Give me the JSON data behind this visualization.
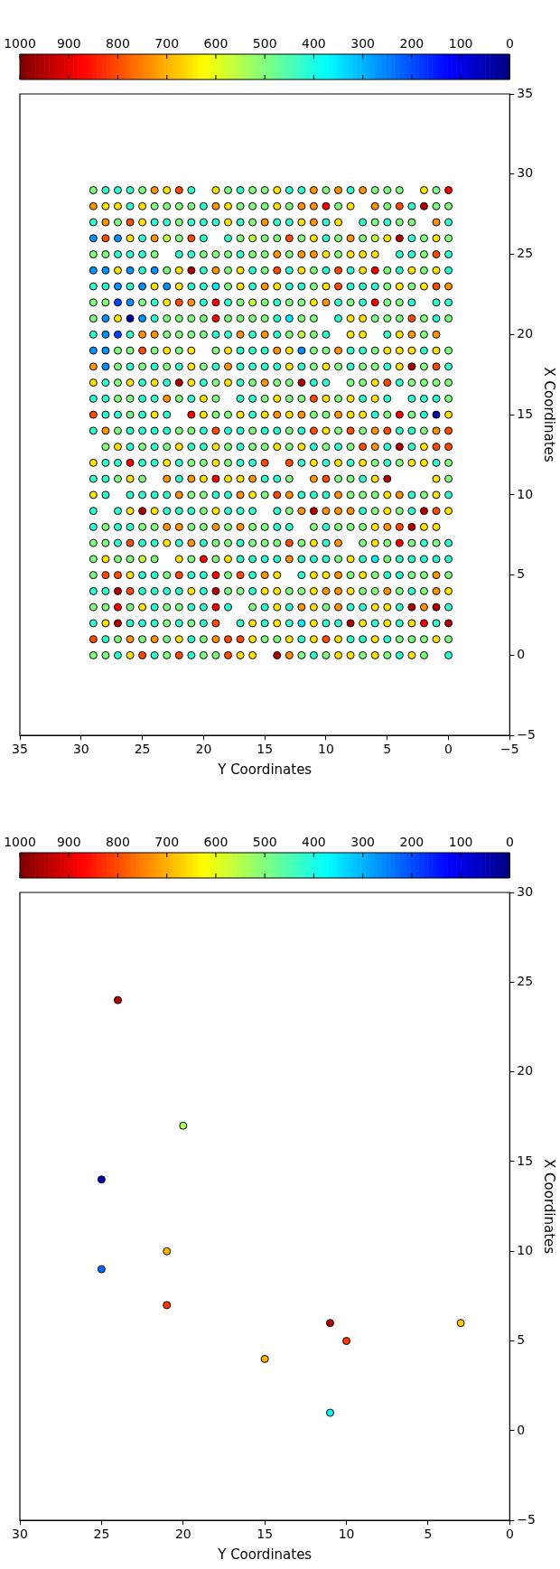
{
  "chart_data": [
    {
      "type": "scatter",
      "xlabel": "Y Coordinates",
      "ylabel": "X Coordinates",
      "marker": "circle",
      "xlim": [
        30,
        0
      ],
      "ylim": [
        -5,
        30
      ],
      "xticks": [
        30,
        25,
        20,
        15,
        10,
        5,
        0
      ],
      "yticks": [
        {
          "value": -5,
          "label": "−5"
        },
        0,
        5,
        10,
        15,
        20,
        25,
        30
      ],
      "clim": [
        0,
        1000
      ],
      "cticks": [
        0,
        100,
        200,
        300,
        400,
        500,
        600,
        700,
        800,
        900,
        1000
      ],
      "x": [
        11,
        15,
        10,
        11,
        3,
        21,
        25,
        21,
        25,
        20,
        24
      ],
      "values": [
        1,
        4,
        5,
        6,
        6,
        7,
        9,
        10,
        14,
        17,
        24
      ],
      "cvalues": [
        370,
        700,
        820,
        950,
        680,
        820,
        230,
        700,
        50,
        540,
        950
      ]
    },
    {
      "type": "scatter",
      "xlabel": "Y Coordinates",
      "ylabel": "X Coordinates",
      "marker": "circle",
      "xlim": [
        35,
        -5
      ],
      "ylim": [
        -5,
        35
      ],
      "xticks": [
        35,
        30,
        25,
        20,
        15,
        10,
        5,
        0,
        {
          "value": -5,
          "label": "−5"
        }
      ],
      "yticks": [
        {
          "value": -5,
          "label": "−5"
        },
        0,
        5,
        10,
        15,
        20,
        25,
        30,
        35
      ],
      "clim": [
        0,
        1000
      ],
      "cticks": [
        0,
        100,
        200,
        300,
        400,
        500,
        600,
        700,
        800,
        900,
        1000
      ],
      "x": [
        29,
        28,
        27,
        26,
        25,
        24,
        23,
        22,
        21,
        19,
        18,
        17,
        16,
        15,
        14,
        13,
        12,
        11,
        10,
        9,
        8,
        7,
        6,
        5,
        4,
        2,
        1,
        0,
        29,
        28,
        27,
        26,
        25,
        24,
        23,
        22,
        21,
        20,
        19,
        18,
        17,
        16,
        15,
        14,
        13,
        12,
        11,
        10,
        9,
        8,
        6,
        5,
        4,
        3,
        2,
        1,
        0,
        29,
        28,
        27,
        26,
        25,
        24,
        23,
        22,
        21,
        20,
        19,
        18,
        17,
        16,
        15,
        14,
        13,
        12,
        11,
        10,
        9,
        7,
        6,
        5,
        4,
        3,
        1,
        0,
        29,
        28,
        27,
        26,
        25,
        24,
        23,
        22,
        21,
        20,
        18,
        17,
        16,
        15,
        14,
        13,
        12,
        11,
        10,
        9,
        8,
        7,
        6,
        5,
        4,
        3,
        2,
        1,
        0,
        29,
        28,
        27,
        26,
        25,
        24,
        22,
        21,
        20,
        19,
        18,
        17,
        16,
        15,
        14,
        13,
        12,
        11,
        10,
        9,
        8,
        7,
        6,
        4,
        3,
        2,
        1,
        0,
        29,
        28,
        27,
        26,
        25,
        24,
        23,
        22,
        21,
        20,
        19,
        18,
        17,
        16,
        15,
        14,
        13,
        12,
        11,
        10,
        9,
        8,
        7,
        6,
        5,
        4,
        3,
        2,
        1,
        0,
        29,
        28,
        27,
        26,
        25,
        24,
        23,
        22,
        21,
        20,
        19,
        18,
        17,
        16,
        15,
        14,
        13,
        12,
        11,
        10,
        9,
        8,
        7,
        6,
        5,
        4,
        3,
        2,
        1,
        0,
        29,
        28,
        27,
        26,
        25,
        24,
        23,
        22,
        21,
        20,
        19,
        18,
        17,
        16,
        15,
        14,
        13,
        12,
        11,
        10,
        9,
        8,
        7,
        6,
        5,
        4,
        3,
        1,
        0,
        29,
        28,
        27,
        26,
        25,
        24,
        23,
        22,
        21,
        20,
        19,
        18,
        17,
        16,
        15,
        14,
        13,
        12,
        11,
        9,
        8,
        7,
        6,
        5,
        4,
        3,
        2,
        1,
        0,
        29,
        28,
        27,
        26,
        25,
        24,
        23,
        22,
        21,
        20,
        19,
        18,
        17,
        16,
        15,
        14,
        13,
        12,
        11,
        10,
        8,
        7,
        5,
        4,
        3,
        2,
        1,
        29,
        28,
        27,
        26,
        25,
        24,
        23,
        22,
        21,
        19,
        18,
        17,
        16,
        15,
        14,
        13,
        12,
        11,
        10,
        9,
        8,
        7,
        6,
        5,
        4,
        3,
        2,
        1,
        0,
        29,
        28,
        27,
        26,
        25,
        24,
        23,
        22,
        21,
        20,
        19,
        18,
        17,
        16,
        15,
        14,
        13,
        12,
        11,
        10,
        9,
        8,
        7,
        6,
        5,
        4,
        3,
        2,
        1,
        0,
        29,
        28,
        27,
        26,
        25,
        24,
        23,
        22,
        21,
        20,
        19,
        18,
        17,
        16,
        15,
        14,
        13,
        12,
        11,
        10,
        8,
        7,
        6,
        5,
        4,
        3,
        2,
        1,
        0,
        29,
        28,
        27,
        26,
        25,
        24,
        23,
        22,
        21,
        20,
        19,
        17,
        16,
        15,
        14,
        13,
        12,
        11,
        10,
        9,
        8,
        7,
        6,
        5,
        3,
        2,
        1,
        0,
        29,
        28,
        27,
        26,
        25,
        24,
        23,
        21,
        20,
        19,
        18,
        17,
        16,
        15,
        14,
        13,
        12,
        11,
        10,
        9,
        8,
        7,
        6,
        5,
        4,
        3,
        2,
        1,
        0,
        29,
        28,
        27,
        26,
        25,
        24,
        23,
        22,
        21,
        20,
        19,
        18,
        17,
        16,
        15,
        14,
        13,
        12,
        11,
        10,
        9,
        8,
        7,
        6,
        5,
        4,
        3,
        2,
        1,
        0,
        28,
        27,
        26,
        25,
        24,
        23,
        22,
        21,
        20,
        19,
        18,
        17,
        16,
        15,
        14,
        13,
        12,
        11,
        10,
        9,
        8,
        7,
        6,
        5,
        4,
        3,
        2,
        1,
        0,
        29,
        28,
        27,
        26,
        25,
        24,
        23,
        22,
        21,
        20,
        19,
        18,
        17,
        16,
        15,
        13,
        12,
        11,
        10,
        9,
        8,
        7,
        6,
        5,
        4,
        3,
        2,
        1,
        0,
        29,
        28,
        27,
        26,
        25,
        23,
        22,
        21,
        20,
        19,
        18,
        17,
        16,
        15,
        14,
        13,
        11,
        10,
        9,
        8,
        7,
        6,
        5,
        1,
        0,
        29,
        28,
        26,
        25,
        24,
        23,
        22,
        21,
        20,
        19,
        18,
        17,
        16,
        15,
        14,
        13,
        12,
        11,
        10,
        9,
        8,
        7,
        6,
        5,
        4,
        3,
        2,
        1,
        0,
        29,
        27,
        26,
        25,
        24,
        23,
        22,
        21,
        20,
        19,
        18,
        17,
        16,
        14,
        13,
        12,
        11,
        10,
        9,
        8,
        7,
        6,
        5,
        4,
        3,
        2,
        1,
        0,
        29,
        28,
        27,
        26,
        25,
        24,
        23,
        22,
        21,
        20,
        19,
        18,
        17,
        16,
        15,
        14,
        13,
        11,
        10,
        9,
        8,
        7,
        6,
        5,
        4,
        3,
        2,
        1,
        29,
        28,
        27,
        26,
        25,
        24,
        23,
        22,
        21,
        20,
        19,
        18,
        17,
        16,
        15,
        14,
        13,
        12,
        11,
        10,
        9,
        7,
        6,
        5,
        4,
        3,
        2,
        1,
        0,
        29,
        28,
        27,
        26,
        25,
        24,
        22,
        21,
        20,
        19,
        18,
        17,
        16,
        15,
        14,
        13,
        12,
        11,
        10,
        9,
        8,
        7,
        6,
        5,
        4,
        3,
        2,
        1,
        0,
        29,
        28,
        27,
        26,
        25,
        24,
        23,
        22,
        21,
        20,
        19,
        18,
        17,
        16,
        15,
        14,
        12,
        11,
        10,
        9,
        8,
        7,
        6,
        5,
        4,
        3,
        2,
        1,
        0,
        29,
        28,
        27,
        26,
        25,
        24,
        23,
        22,
        21,
        20,
        19,
        18,
        17,
        16,
        15,
        14,
        13,
        12,
        11,
        10,
        9,
        8,
        7,
        6,
        5,
        4,
        3,
        2,
        1,
        0,
        29,
        28,
        27,
        26,
        25,
        24,
        23,
        22,
        21,
        20,
        19,
        18,
        16,
        15,
        14,
        13,
        12,
        11,
        10,
        9,
        8,
        7,
        6,
        5,
        4,
        3,
        2,
        1,
        0,
        29,
        28,
        27,
        26,
        25,
        24,
        23,
        22,
        21,
        20,
        19,
        17,
        16,
        15,
        14,
        13,
        12,
        11,
        10,
        9,
        8,
        7,
        6,
        5,
        4,
        3,
        2,
        1,
        0,
        29,
        28,
        27,
        26,
        25,
        24,
        23,
        22,
        21,
        20,
        19,
        18,
        17,
        16,
        15,
        14,
        13,
        12,
        11,
        10,
        9,
        8,
        7,
        6,
        5,
        4,
        3,
        2,
        1,
        0,
        29,
        28,
        27,
        26,
        25,
        24,
        23,
        22,
        21,
        20,
        19,
        18,
        17,
        16,
        14,
        13,
        12,
        11,
        10,
        9,
        8,
        7,
        6,
        5,
        4,
        3,
        2,
        0
      ],
      "values": [
        29,
        29,
        29,
        29,
        29,
        29,
        29,
        29,
        29,
        29,
        29,
        29,
        29,
        29,
        29,
        29,
        29,
        29,
        29,
        29,
        29,
        29,
        29,
        29,
        29,
        29,
        29,
        29,
        28,
        28,
        28,
        28,
        28,
        28,
        28,
        28,
        28,
        28,
        28,
        28,
        28,
        28,
        28,
        28,
        28,
        28,
        28,
        28,
        28,
        28,
        28,
        28,
        28,
        28,
        28,
        28,
        28,
        27,
        27,
        27,
        27,
        27,
        27,
        27,
        27,
        27,
        27,
        27,
        27,
        27,
        27,
        27,
        27,
        27,
        27,
        27,
        27,
        27,
        27,
        27,
        27,
        27,
        27,
        27,
        27,
        26,
        26,
        26,
        26,
        26,
        26,
        26,
        26,
        26,
        26,
        26,
        26,
        26,
        26,
        26,
        26,
        26,
        26,
        26,
        26,
        26,
        26,
        26,
        26,
        26,
        26,
        26,
        26,
        26,
        25,
        25,
        25,
        25,
        25,
        25,
        25,
        25,
        25,
        25,
        25,
        25,
        25,
        25,
        25,
        25,
        25,
        25,
        25,
        25,
        25,
        25,
        25,
        25,
        25,
        25,
        25,
        25,
        24,
        24,
        24,
        24,
        24,
        24,
        24,
        24,
        24,
        24,
        24,
        24,
        24,
        24,
        24,
        24,
        24,
        24,
        24,
        24,
        24,
        24,
        24,
        24,
        24,
        24,
        24,
        24,
        24,
        24,
        23,
        23,
        23,
        23,
        23,
        23,
        23,
        23,
        23,
        23,
        23,
        23,
        23,
        23,
        23,
        23,
        23,
        23,
        23,
        23,
        23,
        23,
        23,
        23,
        23,
        23,
        23,
        23,
        23,
        23,
        22,
        22,
        22,
        22,
        22,
        22,
        22,
        22,
        22,
        22,
        22,
        22,
        22,
        22,
        22,
        22,
        22,
        22,
        22,
        22,
        22,
        22,
        22,
        22,
        22,
        22,
        22,
        22,
        22,
        21,
        21,
        21,
        21,
        21,
        21,
        21,
        21,
        21,
        21,
        21,
        21,
        21,
        21,
        21,
        21,
        21,
        21,
        21,
        21,
        21,
        21,
        21,
        21,
        21,
        21,
        21,
        21,
        21,
        20,
        20,
        20,
        20,
        20,
        20,
        20,
        20,
        20,
        20,
        20,
        20,
        20,
        20,
        20,
        20,
        20,
        20,
        20,
        20,
        20,
        20,
        20,
        20,
        20,
        20,
        20,
        19,
        19,
        19,
        19,
        19,
        19,
        19,
        19,
        19,
        19,
        19,
        19,
        19,
        19,
        19,
        19,
        19,
        19,
        19,
        19,
        19,
        19,
        19,
        19,
        19,
        19,
        19,
        19,
        19,
        18,
        18,
        18,
        18,
        18,
        18,
        18,
        18,
        18,
        18,
        18,
        18,
        18,
        18,
        18,
        18,
        18,
        18,
        18,
        18,
        18,
        18,
        18,
        18,
        18,
        18,
        18,
        18,
        18,
        18,
        17,
        17,
        17,
        17,
        17,
        17,
        17,
        17,
        17,
        17,
        17,
        17,
        17,
        17,
        17,
        17,
        17,
        17,
        17,
        17,
        17,
        17,
        17,
        17,
        17,
        17,
        17,
        17,
        17,
        16,
        16,
        16,
        16,
        16,
        16,
        16,
        16,
        16,
        16,
        16,
        16,
        16,
        16,
        16,
        16,
        16,
        16,
        16,
        16,
        16,
        16,
        16,
        16,
        16,
        16,
        16,
        16,
        15,
        15,
        15,
        15,
        15,
        15,
        15,
        15,
        15,
        15,
        15,
        15,
        15,
        15,
        15,
        15,
        15,
        15,
        15,
        15,
        15,
        15,
        15,
        15,
        15,
        15,
        15,
        15,
        15,
        14,
        14,
        14,
        14,
        14,
        14,
        14,
        14,
        14,
        14,
        14,
        14,
        14,
        14,
        14,
        14,
        14,
        14,
        14,
        14,
        14,
        14,
        14,
        14,
        14,
        14,
        14,
        14,
        14,
        14,
        13,
        13,
        13,
        13,
        13,
        13,
        13,
        13,
        13,
        13,
        13,
        13,
        13,
        13,
        13,
        13,
        13,
        13,
        13,
        13,
        13,
        13,
        13,
        13,
        13,
        13,
        13,
        13,
        13,
        12,
        12,
        12,
        12,
        12,
        12,
        12,
        12,
        12,
        12,
        12,
        12,
        12,
        12,
        12,
        12,
        12,
        12,
        12,
        12,
        12,
        12,
        12,
        12,
        12,
        12,
        12,
        12,
        12,
        11,
        11,
        11,
        11,
        11,
        11,
        11,
        11,
        11,
        11,
        11,
        11,
        11,
        11,
        11,
        11,
        11,
        11,
        11,
        11,
        11,
        11,
        11,
        11,
        11,
        10,
        10,
        10,
        10,
        10,
        10,
        10,
        10,
        10,
        10,
        10,
        10,
        10,
        10,
        10,
        10,
        10,
        10,
        10,
        10,
        10,
        10,
        10,
        10,
        10,
        10,
        10,
        10,
        10,
        9,
        9,
        9,
        9,
        9,
        9,
        9,
        9,
        9,
        9,
        9,
        9,
        9,
        9,
        9,
        9,
        9,
        9,
        9,
        9,
        9,
        9,
        9,
        9,
        9,
        9,
        9,
        9,
        8,
        8,
        8,
        8,
        8,
        8,
        8,
        8,
        8,
        8,
        8,
        8,
        8,
        8,
        8,
        8,
        8,
        8,
        8,
        8,
        8,
        8,
        8,
        8,
        8,
        8,
        8,
        8,
        7,
        7,
        7,
        7,
        7,
        7,
        7,
        7,
        7,
        7,
        7,
        7,
        7,
        7,
        7,
        7,
        7,
        7,
        7,
        7,
        7,
        7,
        7,
        7,
        7,
        7,
        7,
        7,
        7,
        6,
        6,
        6,
        6,
        6,
        6,
        6,
        6,
        6,
        6,
        6,
        6,
        6,
        6,
        6,
        6,
        6,
        6,
        6,
        6,
        6,
        6,
        6,
        6,
        6,
        6,
        6,
        6,
        6,
        5,
        5,
        5,
        5,
        5,
        5,
        5,
        5,
        5,
        5,
        5,
        5,
        5,
        5,
        5,
        5,
        5,
        5,
        5,
        5,
        5,
        5,
        5,
        5,
        5,
        5,
        5,
        5,
        5,
        4,
        4,
        4,
        4,
        4,
        4,
        4,
        4,
        4,
        4,
        4,
        4,
        4,
        4,
        4,
        4,
        4,
        4,
        4,
        4,
        4,
        4,
        4,
        4,
        4,
        4,
        4,
        4,
        4,
        4,
        3,
        3,
        3,
        3,
        3,
        3,
        3,
        3,
        3,
        3,
        3,
        3,
        3,
        3,
        3,
        3,
        3,
        3,
        3,
        3,
        3,
        3,
        3,
        3,
        3,
        3,
        3,
        3,
        3,
        2,
        2,
        2,
        2,
        2,
        2,
        2,
        2,
        2,
        2,
        2,
        2,
        2,
        2,
        2,
        2,
        2,
        2,
        2,
        2,
        2,
        2,
        2,
        2,
        2,
        2,
        2,
        2,
        2,
        1,
        1,
        1,
        1,
        1,
        1,
        1,
        1,
        1,
        1,
        1,
        1,
        1,
        1,
        1,
        1,
        1,
        1,
        1,
        1,
        1,
        1,
        1,
        1,
        1,
        1,
        1,
        1,
        1,
        1,
        0,
        0,
        0,
        0,
        0,
        0,
        0,
        0,
        0,
        0,
        0,
        0,
        0,
        0,
        0,
        0,
        0,
        0,
        0,
        0,
        0,
        0,
        0,
        0,
        0,
        0,
        0,
        0
      ],
      "cvalues": [
        500,
        420,
        420,
        420,
        500,
        730,
        650,
        800,
        420,
        650,
        500,
        420,
        500,
        500,
        650,
        420,
        420,
        730,
        500,
        730,
        420,
        730,
        500,
        500,
        500,
        650,
        500,
        880,
        730,
        650,
        650,
        420,
        650,
        500,
        500,
        500,
        500,
        420,
        730,
        650,
        500,
        500,
        500,
        650,
        500,
        730,
        730,
        880,
        500,
        650,
        730,
        500,
        800,
        420,
        950,
        500,
        500,
        420,
        730,
        500,
        800,
        650,
        420,
        420,
        500,
        420,
        420,
        420,
        650,
        420,
        500,
        730,
        420,
        420,
        650,
        730,
        420,
        650,
        420,
        500,
        420,
        500,
        500,
        730,
        420,
        270,
        800,
        270,
        650,
        420,
        730,
        570,
        500,
        800,
        420,
        420,
        500,
        570,
        500,
        500,
        800,
        500,
        650,
        420,
        500,
        730,
        500,
        570,
        650,
        950,
        420,
        500,
        650,
        500,
        500,
        500,
        420,
        420,
        420,
        500,
        420,
        420,
        500,
        500,
        500,
        420,
        500,
        500,
        730,
        500,
        730,
        730,
        650,
        500,
        650,
        650,
        650,
        420,
        420,
        500,
        800,
        420,
        270,
        270,
        650,
        270,
        420,
        270,
        500,
        650,
        950,
        420,
        730,
        500,
        650,
        420,
        500,
        800,
        420,
        650,
        500,
        420,
        800,
        420,
        650,
        880,
        500,
        420,
        650,
        500,
        650,
        420,
        420,
        420,
        270,
        420,
        270,
        650,
        270,
        650,
        420,
        420,
        360,
        500,
        650,
        420,
        730,
        650,
        420,
        420,
        500,
        650,
        800,
        420,
        420,
        420,
        500,
        650,
        500,
        650,
        800,
        730,
        500,
        500,
        190,
        270,
        500,
        420,
        650,
        800,
        730,
        420,
        880,
        420,
        500,
        570,
        500,
        420,
        500,
        500,
        650,
        730,
        420,
        500,
        420,
        880,
        500,
        500,
        420,
        420,
        420,
        500,
        270,
        650,
        40,
        270,
        420,
        500,
        500,
        500,
        500,
        880,
        500,
        500,
        500,
        500,
        420,
        360,
        500,
        500,
        420,
        650,
        650,
        500,
        500,
        500,
        800,
        500,
        420,
        500,
        420,
        270,
        190,
        420,
        730,
        730,
        500,
        500,
        500,
        500,
        420,
        420,
        730,
        420,
        730,
        420,
        500,
        570,
        500,
        420,
        650,
        650,
        420,
        650,
        730,
        500,
        730,
        270,
        270,
        500,
        500,
        800,
        500,
        650,
        500,
        650,
        500,
        650,
        420,
        420,
        420,
        730,
        650,
        270,
        500,
        500,
        730,
        420,
        420,
        500,
        650,
        650,
        650,
        420,
        650,
        500,
        730,
        270,
        500,
        420,
        500,
        420,
        500,
        420,
        650,
        500,
        420,
        730,
        420,
        420,
        420,
        420,
        650,
        420,
        500,
        650,
        500,
        420,
        500,
        500,
        420,
        650,
        950,
        500,
        800,
        420,
        650,
        420,
        500,
        650,
        420,
        650,
        420,
        950,
        650,
        420,
        500,
        650,
        420,
        500,
        730,
        500,
        500,
        950,
        420,
        420,
        500,
        500,
        650,
        800,
        420,
        500,
        500,
        500,
        500,
        420,
        420,
        500,
        500,
        420,
        420,
        730,
        500,
        420,
        650,
        500,
        420,
        420,
        500,
        650,
        500,
        500,
        800,
        650,
        500,
        650,
        420,
        650,
        420,
        420,
        420,
        420,
        500,
        800,
        420,
        420,
        500,
        420,
        650,
        420,
        880,
        650,
        500,
        500,
        650,
        420,
        650,
        730,
        650,
        730,
        500,
        500,
        730,
        650,
        650,
        420,
        500,
        880,
        500,
        420,
        40,
        650,
        420,
        730,
        500,
        420,
        420,
        420,
        420,
        500,
        500,
        420,
        800,
        420,
        420,
        500,
        420,
        420,
        500,
        420,
        800,
        650,
        500,
        800,
        500,
        730,
        800,
        420,
        420,
        500,
        730,
        800,
        500,
        650,
        420,
        500,
        420,
        500,
        650,
        420,
        420,
        650,
        500,
        420,
        500,
        500,
        650,
        500,
        650,
        420,
        500,
        420,
        500,
        800,
        730,
        420,
        950,
        420,
        650,
        800,
        800,
        650,
        420,
        420,
        880,
        420,
        420,
        650,
        420,
        500,
        500,
        650,
        500,
        420,
        420,
        800,
        800,
        420,
        650,
        420,
        650,
        420,
        650,
        500,
        420,
        500,
        650,
        650,
        420,
        500,
        420,
        420,
        500,
        650,
        500,
        730,
        420,
        730,
        650,
        880,
        650,
        650,
        730,
        420,
        420,
        500,
        730,
        800,
        500,
        500,
        420,
        650,
        950,
        650,
        500,
        650,
        420,
        420,
        420,
        420,
        420,
        730,
        500,
        500,
        420,
        420,
        730,
        650,
        500,
        800,
        730,
        420,
        420,
        420,
        730,
        500,
        500,
        500,
        650,
        730,
        420,
        500,
        650,
        420,
        420,
        420,
        650,
        950,
        650,
        420,
        420,
        420,
        500,
        650,
        420,
        420,
        420,
        420,
        500,
        730,
        950,
        730,
        730,
        730,
        420,
        500,
        650,
        500,
        420,
        950,
        800,
        650,
        420,
        500,
        420,
        420,
        500,
        500,
        730,
        730,
        500,
        500,
        730,
        500,
        730,
        500,
        500,
        420,
        420,
        500,
        420,
        500,
        500,
        500,
        650,
        730,
        800,
        950,
        650,
        650,
        500,
        500,
        420,
        800,
        420,
        420,
        650,
        420,
        730,
        420,
        500,
        500,
        420,
        500,
        500,
        500,
        800,
        500,
        650,
        420,
        730,
        500,
        650,
        500,
        880,
        500,
        420,
        500,
        420,
        500,
        650,
        500,
        500,
        570,
        500,
        650,
        500,
        880,
        500,
        650,
        420,
        420,
        420,
        420,
        730,
        420,
        420,
        420,
        500,
        650,
        420,
        360,
        500,
        420,
        420,
        420,
        420,
        420,
        500,
        800,
        800,
        650,
        420,
        420,
        500,
        800,
        420,
        420,
        880,
        500,
        800,
        420,
        730,
        650,
        420,
        650,
        650,
        730,
        500,
        650,
        500,
        420,
        420,
        500,
        500,
        730,
        500,
        420,
        420,
        950,
        800,
        420,
        420,
        420,
        420,
        650,
        420,
        950,
        500,
        500,
        420,
        650,
        650,
        500,
        500,
        650,
        730,
        730,
        650,
        500,
        500,
        730,
        500,
        420,
        500,
        730,
        650,
        500,
        500,
        880,
        500,
        650,
        420,
        500,
        500,
        420,
        420,
        880,
        420,
        500,
        420,
        650,
        420,
        730,
        650,
        500,
        730,
        420,
        420,
        650,
        650,
        420,
        950,
        730,
        950,
        420,
        420,
        650,
        950,
        420,
        420,
        420,
        500,
        420,
        500,
        420,
        800,
        420,
        650,
        420,
        650,
        420,
        360,
        650,
        420,
        420,
        950,
        650,
        420,
        650,
        420,
        650,
        880,
        420,
        950,
        800,
        420,
        500,
        730,
        500,
        730,
        500,
        650,
        420,
        500,
        730,
        800,
        800,
        650,
        500,
        500,
        650,
        420,
        650,
        800,
        650,
        420,
        420,
        650,
        420,
        500,
        500,
        500,
        650,
        500,
        500,
        500,
        420,
        650,
        800,
        420,
        500,
        800,
        420,
        500,
        500,
        800,
        650,
        650,
        950,
        730,
        500,
        420,
        500,
        650,
        650,
        500,
        650,
        500,
        420,
        650,
        500,
        420
      ]
    }
  ]
}
